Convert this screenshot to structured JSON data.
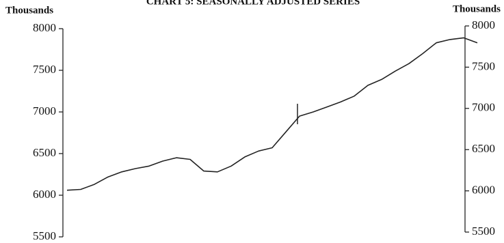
{
  "chart_data": {
    "type": "line",
    "title": "CHART 5: SEASONALLY ADJUSTED SERIES",
    "ylabel": "Thousands",
    "y2label": "Thousands",
    "categories": [
      null,
      null,
      null,
      null,
      null,
      null,
      null,
      null,
      null,
      null,
      null,
      null,
      null,
      null,
      null,
      null,
      null,
      null,
      null,
      null,
      null,
      null,
      null,
      null,
      null,
      null,
      null,
      null,
      null,
      null,
      null
    ],
    "series": [
      {
        "color": "#222222",
        "values": [
          6060,
          6070,
          6130,
          6220,
          6280,
          6320,
          6350,
          6410,
          6450,
          6430,
          6290,
          6280,
          6350,
          6460,
          6530,
          6570,
          6760,
          6950,
          7000,
          7060,
          7120,
          7190,
          7320,
          7390,
          7490,
          7580,
          7700,
          7830,
          7870,
          7890,
          7830
        ]
      }
    ],
    "ylim": [
      5500,
      8000
    ],
    "yticks": [
      5500,
      6000,
      6500,
      7000,
      7500,
      8000
    ],
    "y2lim": [
      5500,
      8000
    ],
    "y2ticks": [
      5500,
      6000,
      6500,
      7000,
      7500,
      8000
    ]
  }
}
